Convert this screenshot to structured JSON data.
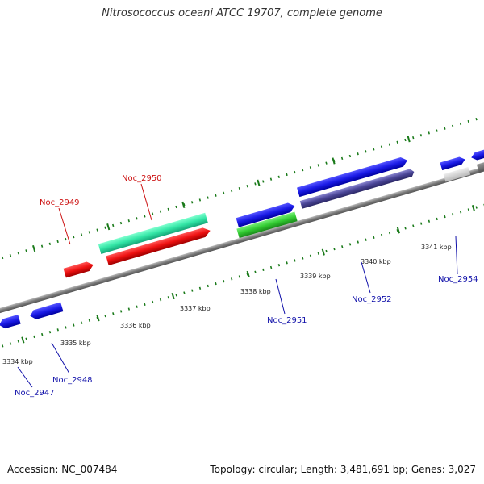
{
  "title": "Nitrosococcus oceani ATCC 19707, complete genome",
  "footer": {
    "accession": "Accession: NC_007484",
    "topology": "Topology: circular; Length: 3,481,691 bp; Genes: 3,027"
  },
  "colors": {
    "backbone": "#8a8a8a",
    "tick": "#1a7a1a",
    "label_red": "#cc1111",
    "label_blue": "#1111aa"
  },
  "tick_labels": [
    "3334 kbp",
    "3335 kbp",
    "3336 kbp",
    "3337 kbp",
    "3338 kbp",
    "3339 kbp",
    "3340 kbp",
    "3341 kbp"
  ],
  "genes": [
    {
      "label": "Noc_2947",
      "color": "blue"
    },
    {
      "label": "Noc_2948",
      "color": "blue"
    },
    {
      "label": "Noc_2949",
      "color": "red"
    },
    {
      "label": "Noc_2950",
      "color": "red"
    },
    {
      "label": "Noc_2951",
      "color": "blue"
    },
    {
      "label": "Noc_2952",
      "color": "blue"
    },
    {
      "label": "Noc_2954",
      "color": "blue"
    }
  ]
}
